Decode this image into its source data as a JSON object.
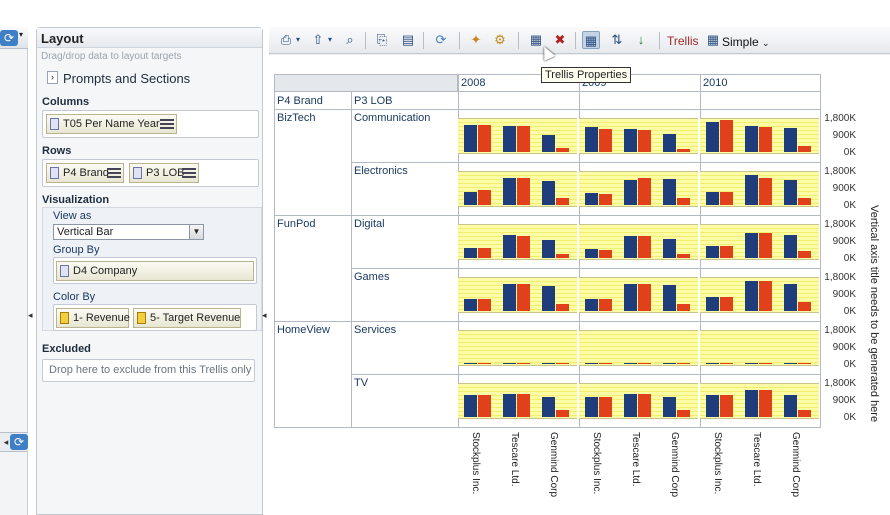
{
  "panel": {
    "title": "Layout",
    "hint": "Drag/drop data to layout targets",
    "prompts_label": "Prompts and Sections",
    "columns_label": "Columns",
    "columns_chip": "T05 Per Name Year",
    "rows_label": "Rows",
    "rows_chips": [
      "P4 Brand",
      "P3 LOB"
    ],
    "visualization_label": "Visualization",
    "view_as_label": "View as",
    "view_as_value": "Vertical Bar",
    "group_by_label": "Group By",
    "group_by_chip": "D4 Company",
    "color_by_label": "Color By",
    "color_by_chips": [
      "1- Revenue",
      "5- Target Revenue"
    ],
    "excluded_label": "Excluded",
    "excluded_placeholder": "Drop here to exclude from this Trellis only"
  },
  "toolbar": {
    "trellis_label": "Trellis",
    "simple_label": "Simple",
    "tooltip": "Trellis Properties"
  },
  "trellis": {
    "row_headers": [
      "P4 Brand",
      "P3 LOB"
    ],
    "years": [
      "2008",
      "2009",
      "2010"
    ],
    "brands": [
      "BizTech",
      "FunPod",
      "HomeView"
    ],
    "lobs": [
      "Communication",
      "Electronics",
      "Digital",
      "Games",
      "Services",
      "TV"
    ],
    "y_ticks": [
      "1,800K",
      "900K",
      "0K"
    ],
    "x_labels": [
      "Stockplus Inc.",
      "Tescare Ltd.",
      "Genmind Corp"
    ],
    "axis_title": "Vertical axis title needs to be generated here"
  },
  "chart_data": {
    "type": "bar",
    "categories": [
      "Stockplus Inc.",
      "Tescare Ltd.",
      "Genmind Corp"
    ],
    "series_names": [
      "1- Revenue",
      "5- Target Revenue"
    ],
    "colors": {
      "revenue": "#1f3d7a",
      "target": "#e0401a"
    },
    "ylim": [
      0,
      1800
    ],
    "panels": [
      {
        "lob": "Communication",
        "year": "2008",
        "revenue": [
          1500,
          1450,
          950
        ],
        "target": [
          1500,
          1450,
          200
        ]
      },
      {
        "lob": "Communication",
        "year": "2009",
        "revenue": [
          1400,
          1300,
          1000
        ],
        "target": [
          1300,
          1250,
          150
        ]
      },
      {
        "lob": "Communication",
        "year": "2010",
        "revenue": [
          1700,
          1450,
          1350
        ],
        "target": [
          1800,
          1400,
          350
        ]
      },
      {
        "lob": "Electronics",
        "year": "2008",
        "revenue": [
          750,
          1500,
          1350
        ],
        "target": [
          850,
          1500,
          400
        ]
      },
      {
        "lob": "Electronics",
        "year": "2009",
        "revenue": [
          650,
          1400,
          1450
        ],
        "target": [
          600,
          1500,
          400
        ]
      },
      {
        "lob": "Electronics",
        "year": "2010",
        "revenue": [
          750,
          1700,
          1400
        ],
        "target": [
          750,
          1500,
          400
        ]
      },
      {
        "lob": "Digital",
        "year": "2008",
        "revenue": [
          550,
          1300,
          1000
        ],
        "target": [
          550,
          1250,
          200
        ]
      },
      {
        "lob": "Digital",
        "year": "2009",
        "revenue": [
          500,
          1250,
          1050
        ],
        "target": [
          450,
          1250,
          200
        ]
      },
      {
        "lob": "Digital",
        "year": "2010",
        "revenue": [
          700,
          1400,
          1300
        ],
        "target": [
          700,
          1400,
          400
        ]
      },
      {
        "lob": "Games",
        "year": "2008",
        "revenue": [
          700,
          1500,
          1400
        ],
        "target": [
          700,
          1500,
          400
        ]
      },
      {
        "lob": "Games",
        "year": "2009",
        "revenue": [
          650,
          1500,
          1450
        ],
        "target": [
          650,
          1500,
          400
        ]
      },
      {
        "lob": "Games",
        "year": "2010",
        "revenue": [
          800,
          1700,
          1500
        ],
        "target": [
          800,
          1700,
          500
        ]
      },
      {
        "lob": "Services",
        "year": "2008",
        "revenue": [
          20,
          20,
          20
        ],
        "target": [
          20,
          20,
          20
        ]
      },
      {
        "lob": "Services",
        "year": "2009",
        "revenue": [
          20,
          20,
          20
        ],
        "target": [
          20,
          20,
          20
        ]
      },
      {
        "lob": "Services",
        "year": "2010",
        "revenue": [
          20,
          20,
          20
        ],
        "target": [
          20,
          20,
          20
        ]
      },
      {
        "lob": "TV",
        "year": "2008",
        "revenue": [
          1250,
          1300,
          1100
        ],
        "target": [
          1250,
          1300,
          400
        ]
      },
      {
        "lob": "TV",
        "year": "2009",
        "revenue": [
          1100,
          1300,
          1100
        ],
        "target": [
          1150,
          1300,
          400
        ]
      },
      {
        "lob": "TV",
        "year": "2010",
        "revenue": [
          1250,
          1500,
          1250
        ],
        "target": [
          1250,
          1500,
          400
        ]
      }
    ]
  }
}
